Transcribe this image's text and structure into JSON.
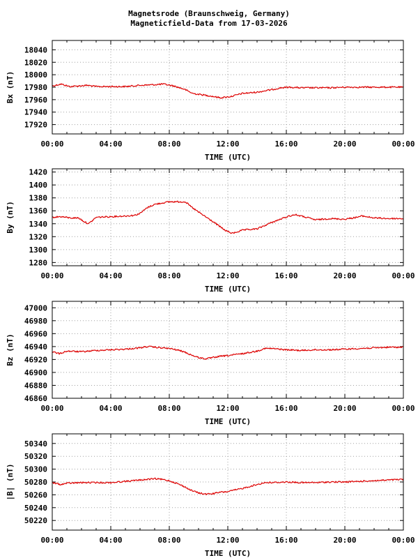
{
  "header": {
    "title_line1": "Magnetsrode (Braunschweig, Germany)",
    "title_line2": "Magneticfield-Data from 17-03-2026"
  },
  "colors": {
    "series": "#dd0000",
    "grid": "#a0a0a0",
    "axis": "#000000"
  },
  "chart_data": [
    {
      "type": "line",
      "ylabel": "Bx (nT)",
      "xlabel": "TIME (UTC)",
      "xlim": [
        0,
        24
      ],
      "ylim": [
        17905,
        18055
      ],
      "yticks": [
        17920,
        17940,
        17960,
        17980,
        18000,
        18020,
        18040
      ],
      "xticks": [
        "00:00",
        "04:00",
        "08:00",
        "12:00",
        "16:00",
        "20:00",
        "00:00"
      ],
      "grid": true,
      "x": [
        0,
        0.6,
        1.2,
        1.8,
        2.4,
        3,
        4,
        5,
        6,
        7,
        7.6,
        8.3,
        9,
        9.6,
        10.2,
        10.8,
        11.5,
        12.2,
        13,
        14,
        15,
        15.6,
        16.2,
        17,
        18,
        19,
        20,
        21,
        22,
        23,
        24
      ],
      "values": [
        17982,
        17985,
        17981,
        17982,
        17983,
        17981,
        17981,
        17981,
        17983,
        17984,
        17985,
        17982,
        17977,
        17970,
        17968,
        17966,
        17963,
        17965,
        17970,
        17972,
        17976,
        17979,
        17980,
        17979,
        17979,
        17979,
        17980,
        17980,
        17980,
        17980,
        17980
      ]
    },
    {
      "type": "line",
      "ylabel": "By (nT)",
      "xlabel": "TIME (UTC)",
      "xlim": [
        0,
        24
      ],
      "ylim": [
        1275,
        1425
      ],
      "yticks": [
        1280,
        1300,
        1320,
        1340,
        1360,
        1380,
        1400,
        1420
      ],
      "xticks": [
        "00:00",
        "04:00",
        "08:00",
        "12:00",
        "16:00",
        "20:00",
        "00:00"
      ],
      "grid": true,
      "x": [
        0,
        0.6,
        1.2,
        1.8,
        2.2,
        2.5,
        3,
        4,
        5,
        5.6,
        6,
        6.5,
        7,
        8,
        8.5,
        9.1,
        9.5,
        10,
        11,
        11.8,
        12.3,
        13,
        14,
        15,
        16.2,
        16.6,
        17,
        18,
        19,
        20,
        20.8,
        21.2,
        22,
        23,
        24
      ],
      "values": [
        1350,
        1351,
        1349,
        1349,
        1343,
        1340,
        1350,
        1351,
        1352,
        1353,
        1356,
        1365,
        1370,
        1374,
        1374,
        1374,
        1366,
        1358,
        1343,
        1330,
        1325,
        1330,
        1332,
        1342,
        1352,
        1354,
        1352,
        1346,
        1348,
        1347,
        1350,
        1352,
        1349,
        1348,
        1348
      ]
    },
    {
      "type": "line",
      "ylabel": "Bz (nT)",
      "xlabel": "TIME (UTC)",
      "xlim": [
        0,
        24
      ],
      "ylim": [
        46860,
        47010
      ],
      "yticks": [
        46860,
        46880,
        46900,
        46920,
        46940,
        46960,
        46980,
        47000
      ],
      "xticks": [
        "00:00",
        "04:00",
        "08:00",
        "12:00",
        "16:00",
        "20:00",
        "00:00"
      ],
      "grid": true,
      "x": [
        0,
        0.5,
        1,
        2,
        3,
        4,
        5,
        6,
        6.5,
        7,
        8,
        8.5,
        9,
        9.5,
        10,
        10.5,
        11,
        11.5,
        12,
        13,
        14,
        14.5,
        15,
        16,
        17,
        18,
        19,
        20,
        21,
        22,
        23,
        24
      ],
      "values": [
        46932,
        46929,
        46933,
        46932,
        46934,
        46935,
        46936,
        46938,
        46940,
        46939,
        46937,
        46935,
        46932,
        46927,
        46923,
        46921,
        46923,
        46925,
        46926,
        46929,
        46933,
        46937,
        46937,
        46935,
        46934,
        46935,
        46935,
        46936,
        46937,
        46938,
        46939,
        46939
      ]
    },
    {
      "type": "line",
      "ylabel": "|B| (nT)",
      "xlabel": "TIME (UTC)",
      "xlim": [
        0,
        24
      ],
      "ylim": [
        50205,
        50355
      ],
      "yticks": [
        50220,
        50240,
        50260,
        50280,
        50300,
        50320,
        50340
      ],
      "xticks": [
        "00:00",
        "04:00",
        "08:00",
        "12:00",
        "16:00",
        "20:00",
        "00:00"
      ],
      "grid": true,
      "x": [
        0,
        0.6,
        1,
        2,
        3,
        4,
        5,
        6,
        6.5,
        7,
        7.5,
        8,
        8.5,
        9,
        9.5,
        10,
        10.5,
        11,
        11.5,
        12,
        13,
        14,
        14.5,
        15,
        16,
        17,
        18,
        19,
        20,
        21,
        22,
        23,
        24
      ],
      "values": [
        50279,
        50276,
        50278,
        50279,
        50279,
        50279,
        50281,
        50283,
        50284,
        50285,
        50284,
        50282,
        50278,
        50273,
        50267,
        50263,
        50261,
        50262,
        50264,
        50265,
        50270,
        50276,
        50279,
        50279,
        50280,
        50279,
        50279,
        50280,
        50280,
        50281,
        50282,
        50283,
        50284
      ]
    }
  ]
}
